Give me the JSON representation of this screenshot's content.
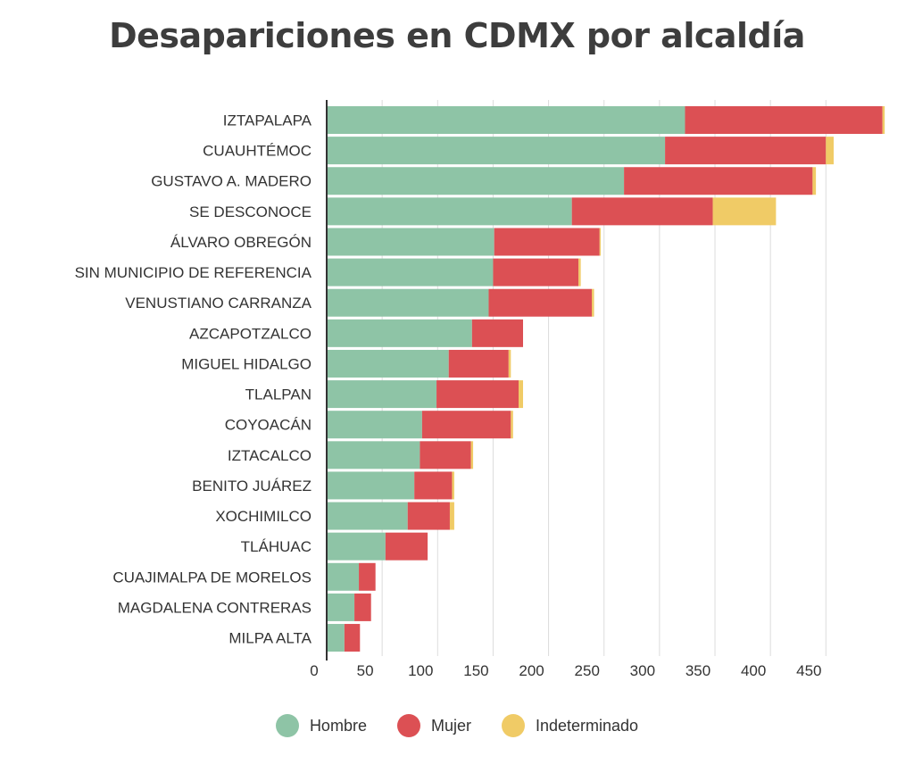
{
  "chart_data": {
    "type": "bar",
    "orientation": "horizontal",
    "stacked": true,
    "title": "Desapariciones en CDMX por alcaldía",
    "xlabel": "",
    "ylabel": "",
    "xlim": [
      0,
      500
    ],
    "x_ticks": [
      0,
      50,
      100,
      150,
      200,
      250,
      300,
      350,
      400,
      450
    ],
    "grid": "vertical",
    "legend_position": "bottom-center",
    "categories": [
      "IZTAPALAPA",
      "CUAUHTÉMOC",
      "GUSTAVO A. MADERO",
      "SE DESCONOCE",
      "ÁLVARO OBREGÓN",
      "SIN MUNICIPIO DE REFERENCIA",
      "VENUSTIANO CARRANZA",
      "AZCAPOTZALCO",
      "MIGUEL HIDALGO",
      "TLALPAN",
      "COYOACÁN",
      "IZTACALCO",
      "BENITO JUÁREZ",
      "XOCHIMILCO",
      "TLÁHUAC",
      "CUAJIMALPA DE MORELOS",
      "MAGDALENA CONTRERAS",
      "MILPA ALTA"
    ],
    "series": [
      {
        "name": "Hombre",
        "color": "#8ec4a6",
        "values": [
          323,
          305,
          268,
          221,
          151,
          150,
          146,
          131,
          110,
          99,
          86,
          84,
          79,
          73,
          53,
          29,
          25,
          16
        ]
      },
      {
        "name": "Mujer",
        "color": "#dc5054",
        "values": [
          178,
          145,
          170,
          127,
          95,
          77,
          93,
          46,
          54,
          74,
          80,
          46,
          34,
          38,
          38,
          15,
          15,
          14
        ]
      },
      {
        "name": "Indeterminado",
        "color": "#f0cb66",
        "values": [
          2,
          7,
          3,
          57,
          1,
          2,
          2,
          0,
          2,
          4,
          2,
          2,
          2,
          4,
          0,
          0,
          0,
          0
        ]
      }
    ]
  }
}
